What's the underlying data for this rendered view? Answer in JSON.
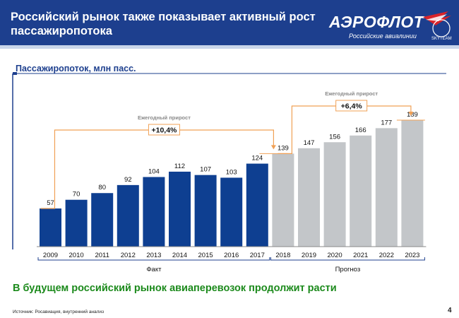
{
  "header": {
    "title": "Российский рынок также показывает активный рост пассажиропотока",
    "logo_text": "АЭРОФЛОТ",
    "logo_sub": "Российские авиалинии",
    "logo_emblem_text": "SKYTEAM"
  },
  "subtitle": "Пассажиропоток, млн пасс.",
  "conclusion": "В будущем российский рынок авиаперевозок продолжит расти",
  "footnote": "Источник: Росавиация, внутренний анализ",
  "page_number": "4",
  "colors": {
    "header": "#1d3f8e",
    "fact_bar": "#0e3f91",
    "forecast_bar": "#c3c6c9",
    "annotation": "#f0a055",
    "conclusion": "#1c8a1c"
  },
  "chart_data": {
    "type": "bar",
    "categories": [
      "2009",
      "2010",
      "2011",
      "2012",
      "2013",
      "2014",
      "2015",
      "2016",
      "2017",
      "2018",
      "2019",
      "2020",
      "2021",
      "2022",
      "2023"
    ],
    "values": [
      57,
      70,
      80,
      92,
      104,
      112,
      107,
      103,
      124,
      139,
      147,
      156,
      166,
      177,
      189
    ],
    "ylim": [
      0,
      190
    ],
    "grid": false,
    "groups": [
      {
        "label": "Факт",
        "from": "2009",
        "to": "2017"
      },
      {
        "label": "Прогноз",
        "from": "2018",
        "to": "2023"
      }
    ],
    "annotations": [
      {
        "caption": "Ежегодный прирост",
        "value": "+10,4%",
        "from": "2009",
        "to": "2018"
      },
      {
        "caption": "Ежегодный прирост",
        "value": "+6,4%",
        "from": "2018",
        "to": "2023"
      }
    ]
  }
}
